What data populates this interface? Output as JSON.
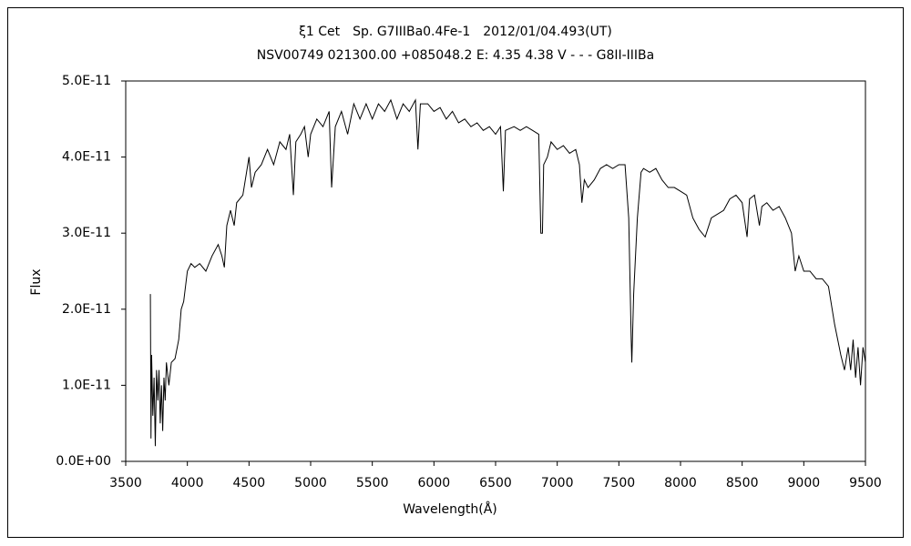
{
  "chart_data": {
    "type": "line",
    "title": "ξ1 Cet　Sp. G7IIIBa0.4Fe-1　2012/01/04.493(UT)",
    "subtitle": "NSV00749 021300.00 +085048.2 E: 4.35 4.38 V - - - G8II-IIIBa",
    "x_label": "Wavelength(Å)",
    "y_label": "Flux",
    "color": "#000000",
    "xlim": [
      3500,
      9500
    ],
    "xticks": [
      3500,
      4000,
      4500,
      5000,
      5500,
      6000,
      6500,
      7000,
      7500,
      8000,
      8500,
      9000,
      9500
    ],
    "ylim": [
      0,
      5e-11
    ],
    "yticks": [
      {
        "value": 0,
        "label": "0.0E+00"
      },
      {
        "value": 1e-11,
        "label": "1.0E-11"
      },
      {
        "value": 2e-11,
        "label": "2.0E-11"
      },
      {
        "value": 3e-11,
        "label": "3.0E-11"
      },
      {
        "value": 4e-11,
        "label": "4.0E-11"
      },
      {
        "value": 5e-11,
        "label": "5.0E-11"
      }
    ],
    "x": [
      3700,
      3705,
      3710,
      3720,
      3730,
      3740,
      3750,
      3760,
      3770,
      3780,
      3790,
      3800,
      3810,
      3820,
      3830,
      3850,
      3870,
      3900,
      3930,
      3950,
      3970,
      4000,
      4030,
      4060,
      4100,
      4150,
      4200,
      4250,
      4280,
      4300,
      4320,
      4350,
      4380,
      4400,
      4450,
      4480,
      4500,
      4520,
      4550,
      4600,
      4650,
      4700,
      4750,
      4800,
      4830,
      4860,
      4880,
      4920,
      4950,
      4980,
      5000,
      5050,
      5100,
      5150,
      5170,
      5200,
      5250,
      5300,
      5350,
      5400,
      5450,
      5500,
      5550,
      5600,
      5650,
      5700,
      5750,
      5800,
      5850,
      5870,
      5890,
      5950,
      6000,
      6050,
      6100,
      6150,
      6200,
      6250,
      6300,
      6350,
      6400,
      6450,
      6500,
      6540,
      6563,
      6580,
      6650,
      6700,
      6750,
      6800,
      6850,
      6867,
      6880,
      6890,
      6920,
      6950,
      7000,
      7050,
      7100,
      7150,
      7180,
      7200,
      7220,
      7250,
      7300,
      7350,
      7400,
      7450,
      7500,
      7550,
      7580,
      7600,
      7605,
      7620,
      7650,
      7680,
      7700,
      7750,
      7800,
      7850,
      7900,
      7950,
      8000,
      8050,
      8100,
      8150,
      8200,
      8250,
      8300,
      8350,
      8400,
      8450,
      8500,
      8540,
      8560,
      8600,
      8640,
      8660,
      8700,
      8750,
      8800,
      8850,
      8900,
      8930,
      8960,
      9000,
      9050,
      9100,
      9150,
      9200,
      9250,
      9300,
      9330,
      9360,
      9380,
      9400,
      9420,
      9440,
      9460,
      9480,
      9500
    ],
    "values": [
      2.2e-11,
      3e-12,
      1.4e-11,
      6e-12,
      1.1e-11,
      2e-12,
      1.2e-11,
      8e-12,
      1.2e-11,
      5e-12,
      1e-11,
      4e-12,
      1.1e-11,
      8e-12,
      1.3e-11,
      1e-11,
      1.3e-11,
      1.35e-11,
      1.6e-11,
      2e-11,
      2.1e-11,
      2.5e-11,
      2.6e-11,
      2.55e-11,
      2.6e-11,
      2.5e-11,
      2.7e-11,
      2.85e-11,
      2.7e-11,
      2.55e-11,
      3.1e-11,
      3.3e-11,
      3.1e-11,
      3.4e-11,
      3.5e-11,
      3.8e-11,
      4e-11,
      3.6e-11,
      3.8e-11,
      3.9e-11,
      4.1e-11,
      3.9e-11,
      4.2e-11,
      4.1e-11,
      4.3e-11,
      3.5e-11,
      4.2e-11,
      4.3e-11,
      4.4e-11,
      4e-11,
      4.3e-11,
      4.5e-11,
      4.4e-11,
      4.6e-11,
      3.6e-11,
      4.4e-11,
      4.6e-11,
      4.3e-11,
      4.7e-11,
      4.5e-11,
      4.7e-11,
      4.5e-11,
      4.7e-11,
      4.6e-11,
      4.75e-11,
      4.5e-11,
      4.7e-11,
      4.6e-11,
      4.75e-11,
      4.1e-11,
      4.7e-11,
      4.7e-11,
      4.6e-11,
      4.65e-11,
      4.5e-11,
      4.6e-11,
      4.45e-11,
      4.5e-11,
      4.4e-11,
      4.45e-11,
      4.35e-11,
      4.4e-11,
      4.3e-11,
      4.4e-11,
      3.55e-11,
      4.35e-11,
      4.4e-11,
      4.35e-11,
      4.4e-11,
      4.35e-11,
      4.3e-11,
      3e-11,
      3e-11,
      3.9e-11,
      4e-11,
      4.2e-11,
      4.1e-11,
      4.15e-11,
      4.05e-11,
      4.1e-11,
      3.9e-11,
      3.4e-11,
      3.7e-11,
      3.6e-11,
      3.7e-11,
      3.85e-11,
      3.9e-11,
      3.85e-11,
      3.9e-11,
      3.9e-11,
      3.2e-11,
      1.6e-11,
      1.3e-11,
      2.2e-11,
      3.2e-11,
      3.8e-11,
      3.85e-11,
      3.8e-11,
      3.85e-11,
      3.7e-11,
      3.6e-11,
      3.6e-11,
      3.55e-11,
      3.5e-11,
      3.2e-11,
      3.05e-11,
      2.95e-11,
      3.2e-11,
      3.25e-11,
      3.3e-11,
      3.45e-11,
      3.5e-11,
      3.4e-11,
      2.95e-11,
      3.45e-11,
      3.5e-11,
      3.1e-11,
      3.35e-11,
      3.4e-11,
      3.3e-11,
      3.35e-11,
      3.2e-11,
      3e-11,
      2.5e-11,
      2.7e-11,
      2.5e-11,
      2.5e-11,
      2.4e-11,
      2.4e-11,
      2.3e-11,
      1.8e-11,
      1.4e-11,
      1.2e-11,
      1.5e-11,
      1.2e-11,
      1.6e-11,
      1.1e-11,
      1.5e-11,
      1e-11,
      1.5e-11,
      1.3e-11
    ]
  }
}
